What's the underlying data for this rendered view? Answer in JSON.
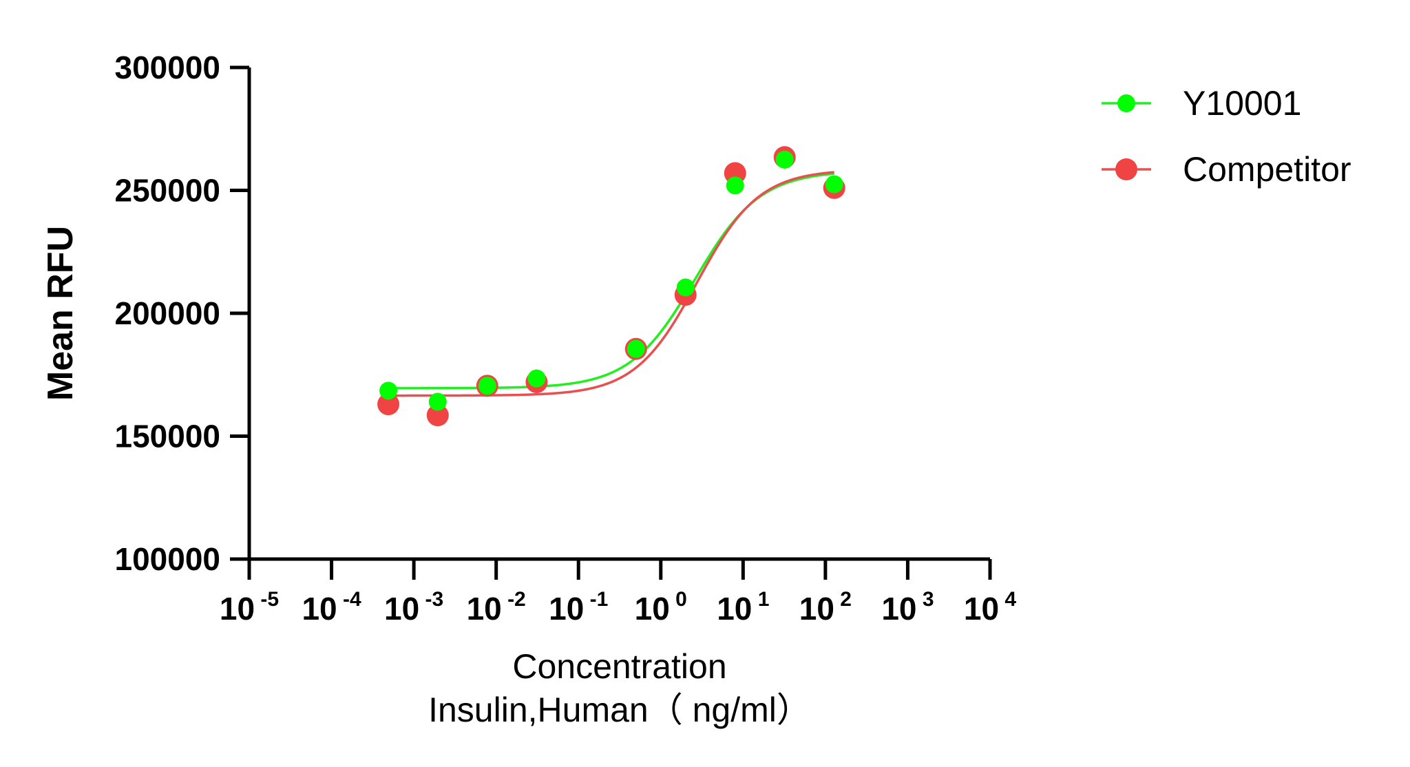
{
  "chart_data": {
    "type": "scatter",
    "title": "",
    "ylabel": "Mean RFU",
    "xlabel_line1": "Concentration",
    "xlabel_line2": "Insulin,Human（ ng/ml）",
    "x_scale": "log10",
    "xlim": [
      1e-05,
      10000
    ],
    "ylim": [
      100000,
      300000
    ],
    "yticks": [
      100000,
      150000,
      200000,
      250000,
      300000
    ],
    "xtick_exponents": [
      "-5",
      "-4",
      "-3",
      "-2",
      "-1",
      "0",
      "1",
      "2",
      "3",
      "4"
    ],
    "xtick_base": "10",
    "grid": false,
    "legend_position": "top-right",
    "series": [
      {
        "name": "Y10001",
        "color": "#22ee22",
        "marker_color": "#00ff00",
        "x": [
          0.00049,
          0.00195,
          0.0078,
          0.031,
          0.5,
          2,
          8,
          32,
          128
        ],
        "y": [
          168500,
          164000,
          170500,
          173500,
          185500,
          210500,
          252000,
          262500,
          252500
        ],
        "fit": {
          "bottom": 169500,
          "top": 258000,
          "ec50": 2.6,
          "hill": 1.1
        }
      },
      {
        "name": "Competitor",
        "color": "#e85050",
        "marker_color": "#f04444",
        "x": [
          0.00049,
          0.00195,
          0.0078,
          0.031,
          0.5,
          2,
          8,
          32,
          128
        ],
        "y": [
          163000,
          158500,
          170500,
          172000,
          185500,
          207500,
          257000,
          263500,
          251000
        ],
        "fit": {
          "bottom": 166500,
          "top": 258500,
          "ec50": 2.75,
          "hill": 1.15
        }
      }
    ]
  }
}
